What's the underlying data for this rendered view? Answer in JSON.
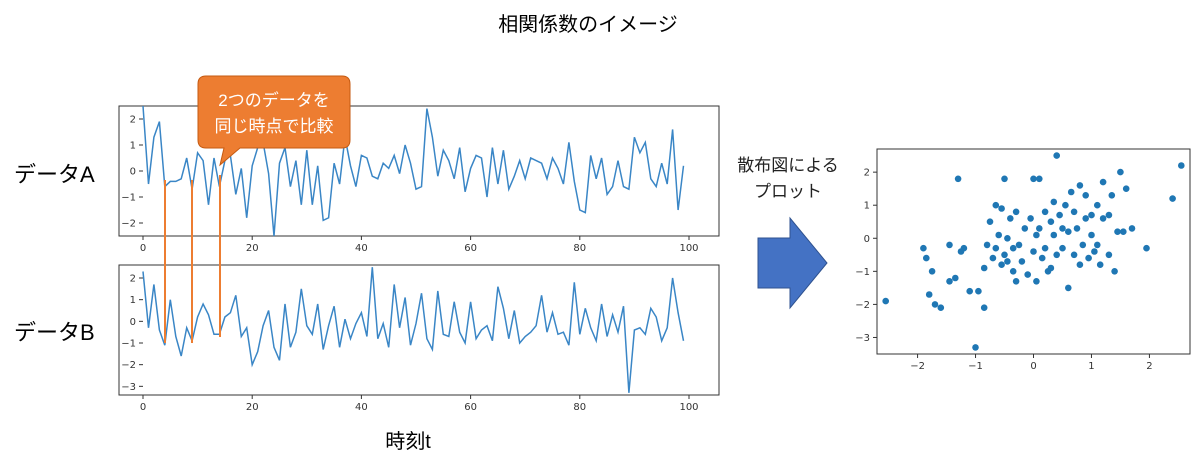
{
  "title": "相関係数のイメージ",
  "label_a": "データA",
  "label_b": "データB",
  "x_axis_label": "時刻t",
  "callout": {
    "line1": "2つのデータを",
    "line2": "同じ時点で比較"
  },
  "arrow_label": {
    "line1": "散布図による",
    "line2": "プロット"
  },
  "colors": {
    "series": "#3a86c6",
    "callout": "#ed7d31",
    "connector": "#ed7d31",
    "arrow": "#4472c4"
  },
  "chart_data": [
    {
      "type": "line",
      "name": "データA",
      "x": [
        0,
        1,
        2,
        3,
        4,
        5,
        6,
        7,
        8,
        9,
        10,
        11,
        12,
        13,
        14,
        15,
        16,
        17,
        18,
        19,
        20,
        21,
        22,
        23,
        24,
        25,
        26,
        27,
        28,
        29,
        30,
        31,
        32,
        33,
        34,
        35,
        36,
        37,
        38,
        39,
        40,
        41,
        42,
        43,
        44,
        45,
        46,
        47,
        48,
        49,
        50,
        51,
        52,
        53,
        54,
        55,
        56,
        57,
        58,
        59,
        60,
        61,
        62,
        63,
        64,
        65,
        66,
        67,
        68,
        69,
        70,
        71,
        72,
        73,
        74,
        75,
        76,
        77,
        78,
        79,
        80,
        81,
        82,
        83,
        84,
        85,
        86,
        87,
        88,
        89,
        90,
        91,
        92,
        93,
        94,
        95,
        96,
        97,
        98,
        99
      ],
      "y": [
        2.5,
        -0.5,
        1.3,
        1.9,
        -0.6,
        -0.4,
        -0.4,
        -0.3,
        0.5,
        -0.7,
        0.7,
        0.4,
        -1.3,
        0.5,
        -0.6,
        0.4,
        0.6,
        -0.9,
        0.1,
        -1.8,
        0.2,
        0.9,
        1.1,
        -0.1,
        -2.5,
        0.3,
        0.9,
        -0.6,
        0.4,
        -1.3,
        0.8,
        -1.3,
        0.2,
        -1.9,
        -1.8,
        0.3,
        -0.5,
        1.3,
        0.2,
        -0.6,
        0.6,
        0.5,
        -0.2,
        -0.3,
        0.3,
        0.1,
        0.6,
        -0.1,
        1.0,
        0.3,
        -0.7,
        -0.6,
        2.4,
        1.3,
        -0.2,
        0.8,
        0.4,
        -0.3,
        0.9,
        -0.8,
        0.1,
        0.6,
        0.5,
        -1.0,
        0.9,
        -0.5,
        0.8,
        -0.7,
        -0.2,
        0.4,
        -0.3,
        0.5,
        0.4,
        0.3,
        -0.3,
        0.5,
        0.1,
        -0.5,
        1.1,
        -0.4,
        -1.5,
        -1.6,
        0.6,
        -0.3,
        0.5,
        -0.9,
        -0.6,
        0.4,
        -0.6,
        -0.7,
        1.3,
        0.7,
        1.1,
        -0.3,
        -0.6,
        0.3,
        -0.5,
        1.6,
        -1.5,
        0.2
      ],
      "xlim": [
        0,
        100
      ],
      "ylim": [
        -2.5,
        2.5
      ]
    },
    {
      "type": "line",
      "name": "データB",
      "x": [
        0,
        1,
        2,
        3,
        4,
        5,
        6,
        7,
        8,
        9,
        10,
        11,
        12,
        13,
        14,
        15,
        16,
        17,
        18,
        19,
        20,
        21,
        22,
        23,
        24,
        25,
        26,
        27,
        28,
        29,
        30,
        31,
        32,
        33,
        34,
        35,
        36,
        37,
        38,
        39,
        40,
        41,
        42,
        43,
        44,
        45,
        46,
        47,
        48,
        49,
        50,
        51,
        52,
        53,
        54,
        55,
        56,
        57,
        58,
        59,
        60,
        61,
        62,
        63,
        64,
        65,
        66,
        67,
        68,
        69,
        70,
        71,
        72,
        73,
        74,
        75,
        76,
        77,
        78,
        79,
        80,
        81,
        82,
        83,
        84,
        85,
        86,
        87,
        88,
        89,
        90,
        91,
        92,
        93,
        94,
        95,
        96,
        97,
        98,
        99
      ],
      "y": [
        2.3,
        -0.3,
        1.7,
        -0.4,
        -1.1,
        1.0,
        -0.7,
        -1.6,
        -0.3,
        -0.9,
        0.2,
        0.8,
        0.3,
        -0.6,
        -0.6,
        0.2,
        0.4,
        1.2,
        -0.7,
        -0.3,
        -2.0,
        -1.4,
        -0.2,
        0.5,
        -1.2,
        -1.8,
        0.8,
        -1.2,
        -0.5,
        1.5,
        -0.2,
        -0.6,
        0.8,
        -1.3,
        -0.2,
        0.7,
        -1.2,
        0.1,
        -0.8,
        -0.1,
        0.4,
        -0.7,
        2.5,
        -0.8,
        -0.1,
        -1.2,
        1.7,
        -0.3,
        1.1,
        -1.1,
        -0.1,
        1.3,
        -0.8,
        -1.3,
        1.4,
        -0.6,
        -0.7,
        0.9,
        -0.5,
        -1.0,
        0.9,
        -0.8,
        -0.4,
        -0.2,
        -0.9,
        1.6,
        0.6,
        -0.8,
        0.5,
        -1.0,
        -0.7,
        -0.5,
        -0.2,
        1.2,
        -0.5,
        0.4,
        -0.6,
        -0.5,
        -1.1,
        1.8,
        -0.6,
        0.6,
        -0.3,
        -0.9,
        0.8,
        -0.7,
        0.3,
        -0.5,
        0.7,
        -3.3,
        -0.4,
        -0.3,
        -0.6,
        0.6,
        0.2,
        -0.9,
        -0.3,
        2.0,
        0.4,
        -0.9
      ],
      "xlim": [
        0,
        100
      ],
      "ylim": [
        -3.4,
        2.6
      ]
    },
    {
      "type": "scatter",
      "points": [
        [
          -2.55,
          -1.9
        ],
        [
          -1.9,
          -0.3
        ],
        [
          -1.85,
          -0.6
        ],
        [
          -1.8,
          -1.7
        ],
        [
          -1.75,
          -1.0
        ],
        [
          -1.7,
          -2.0
        ],
        [
          -1.6,
          -2.1
        ],
        [
          -1.45,
          -1.3
        ],
        [
          -1.45,
          -0.2
        ],
        [
          -1.35,
          -1.2
        ],
        [
          -1.3,
          1.8
        ],
        [
          -1.25,
          -0.4
        ],
        [
          -1.2,
          -0.3
        ],
        [
          -1.1,
          -1.6
        ],
        [
          -1.0,
          -3.3
        ],
        [
          -0.95,
          -1.6
        ],
        [
          -0.85,
          -2.1
        ],
        [
          -0.85,
          -0.9
        ],
        [
          -0.8,
          -0.2
        ],
        [
          -0.75,
          0.5
        ],
        [
          -0.7,
          -0.6
        ],
        [
          -0.65,
          1.0
        ],
        [
          -0.65,
          -0.3
        ],
        [
          -0.6,
          0.1
        ],
        [
          -0.55,
          -0.8
        ],
        [
          -0.55,
          0.9
        ],
        [
          -0.5,
          1.8
        ],
        [
          -0.5,
          -0.5
        ],
        [
          -0.45,
          -0.7
        ],
        [
          -0.45,
          0.0
        ],
        [
          -0.4,
          0.6
        ],
        [
          -0.35,
          -0.3
        ],
        [
          -0.35,
          -1.0
        ],
        [
          -0.3,
          0.8
        ],
        [
          -0.3,
          -1.3
        ],
        [
          -0.25,
          -0.2
        ],
        [
          -0.2,
          -0.7
        ],
        [
          -0.15,
          0.3
        ],
        [
          -0.1,
          -1.1
        ],
        [
          -0.05,
          0.6
        ],
        [
          0.0,
          1.8
        ],
        [
          0.0,
          -0.4
        ],
        [
          0.05,
          -1.3
        ],
        [
          0.05,
          0.1
        ],
        [
          0.1,
          0.3
        ],
        [
          0.1,
          1.8
        ],
        [
          0.15,
          -0.6
        ],
        [
          0.2,
          0.8
        ],
        [
          0.2,
          -0.3
        ],
        [
          0.25,
          -1.0
        ],
        [
          0.3,
          0.5
        ],
        [
          0.3,
          -0.9
        ],
        [
          0.35,
          0.1
        ],
        [
          0.35,
          1.1
        ],
        [
          0.4,
          2.5
        ],
        [
          0.4,
          -0.5
        ],
        [
          0.45,
          0.7
        ],
        [
          0.5,
          -0.3
        ],
        [
          0.5,
          0.3
        ],
        [
          0.55,
          1.0
        ],
        [
          0.6,
          -1.5
        ],
        [
          0.6,
          0.2
        ],
        [
          0.65,
          1.4
        ],
        [
          0.7,
          -0.5
        ],
        [
          0.7,
          0.8
        ],
        [
          0.75,
          0.3
        ],
        [
          0.8,
          1.6
        ],
        [
          0.8,
          -0.8
        ],
        [
          0.85,
          -0.2
        ],
        [
          0.9,
          0.6
        ],
        [
          0.9,
          1.3
        ],
        [
          0.95,
          -0.6
        ],
        [
          1.0,
          0.1
        ],
        [
          1.0,
          0.7
        ],
        [
          1.05,
          -0.4
        ],
        [
          1.1,
          1.0
        ],
        [
          1.1,
          -0.2
        ],
        [
          1.15,
          -0.8
        ],
        [
          1.2,
          0.6
        ],
        [
          1.2,
          1.7
        ],
        [
          1.3,
          0.7
        ],
        [
          1.3,
          -0.5
        ],
        [
          1.35,
          1.3
        ],
        [
          1.4,
          -1.0
        ],
        [
          1.45,
          0.2
        ],
        [
          1.5,
          2.0
        ],
        [
          1.55,
          0.2
        ],
        [
          1.6,
          1.5
        ],
        [
          1.7,
          0.3
        ],
        [
          1.95,
          -0.3
        ],
        [
          2.4,
          1.2
        ],
        [
          2.55,
          2.2
        ]
      ],
      "xlim": [
        -2.7,
        2.7
      ],
      "ylim": [
        -3.5,
        2.7
      ]
    }
  ]
}
